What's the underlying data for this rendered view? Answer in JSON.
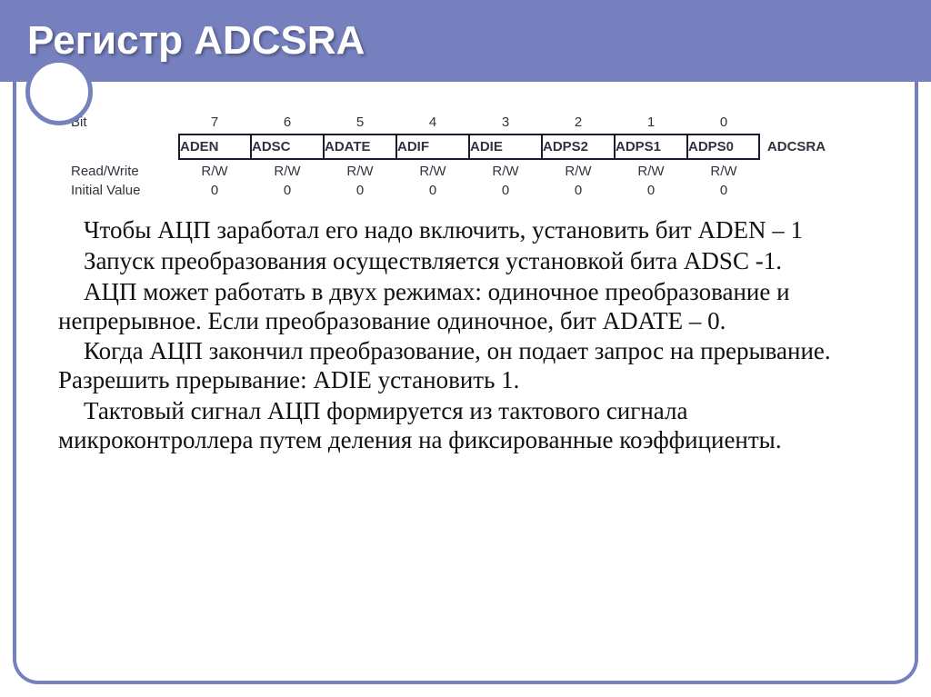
{
  "title": "Регистр ADCSRA",
  "register": {
    "bit_label": "Bit",
    "bits": [
      "7",
      "6",
      "5",
      "4",
      "3",
      "2",
      "1",
      "0"
    ],
    "names": [
      "ADEN",
      "ADSC",
      "ADATE",
      "ADIF",
      "ADIE",
      "ADPS2",
      "ADPS1",
      "ADPS0"
    ],
    "reg_name": "ADCSRA",
    "rw_label": "Read/Write",
    "rw": [
      "R/W",
      "R/W",
      "R/W",
      "R/W",
      "R/W",
      "R/W",
      "R/W",
      "R/W"
    ],
    "init_label": "Initial Value",
    "init": [
      "0",
      "0",
      "0",
      "0",
      "0",
      "0",
      "0",
      "0"
    ]
  },
  "paragraphs": {
    "p1": "Чтобы АЦП заработал его надо включить, установить бит ADEN – 1",
    "p2": "Запуск преобразования осуществляется установкой бита ADSC -1.",
    "p3": "АЦП может работать в двух режимах: одиночное преобразование и непрерывное. Если преобразование одиночное, бит ADATE – 0.",
    "p4": "Когда АЦП закончил преобразование, он подает запрос на прерывание. Разрешить прерывание: ADIE установить 1.",
    "p5": "Тактовый сигнал АЦП формируется из тактового сигнала микроконтроллера путем деления на фиксированные коэффициенты."
  },
  "colors": {
    "accent": "#7680bf",
    "text": "#111111",
    "table_border": "#1a1a30",
    "bg": "#ffffff"
  }
}
